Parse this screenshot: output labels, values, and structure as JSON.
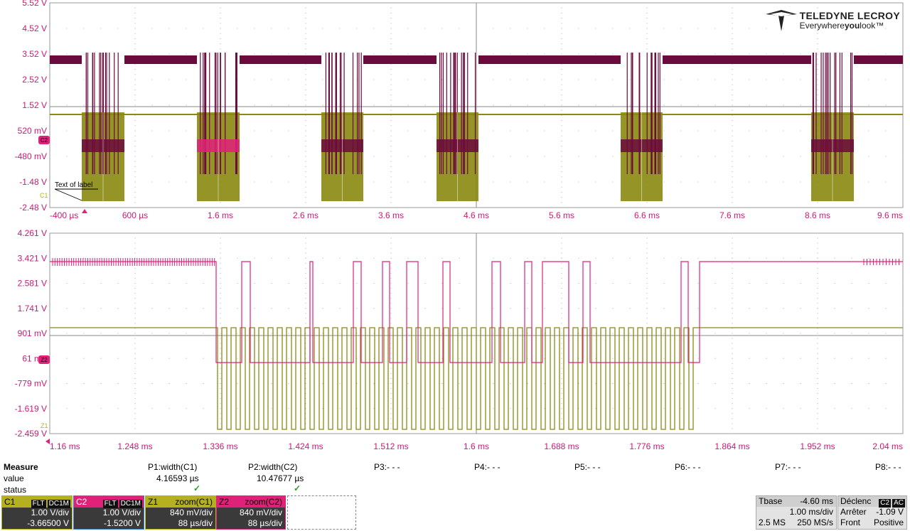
{
  "top_grid": {
    "y_labels": [
      "5.52 V",
      "4.52 V",
      "3.52 V",
      "2.52 V",
      "1.52 V",
      "520 mV",
      "-480 mV",
      "-1.48 V",
      "-2.48 V"
    ],
    "x_labels": [
      "-400 µs",
      "600 µs",
      "1.6 ms",
      "2.6 ms",
      "3.6 ms",
      "4.6 ms",
      "5.6 ms",
      "6.6 ms",
      "7.6 ms",
      "8.6 ms",
      "9.6 ms"
    ],
    "label_text": "Text of label",
    "c2_marker": "C2",
    "c1_marker": "C1"
  },
  "bottom_grid": {
    "y_labels": [
      "4.261 V",
      "3.421 V",
      "2.581 V",
      "1.741 V",
      "901 mV",
      "61 mV",
      "-779 mV",
      "-1.619 V",
      "-2.459 V"
    ],
    "x_labels": [
      "1.16 ms",
      "1.248 ms",
      "1.336 ms",
      "1.424 ms",
      "1.512 ms",
      "1.6 ms",
      "1.688 ms",
      "1.776 ms",
      "1.864 ms",
      "1.952 ms",
      "2.04 ms"
    ],
    "z1_marker": "Z1",
    "z2_marker": "Z2"
  },
  "logo": {
    "brand": "TELEDYNE LECROY",
    "tag_prefix": "Everywhere",
    "tag_bold": "you",
    "tag_suffix": "look"
  },
  "measure": {
    "title": "Measure",
    "row_value": "value",
    "row_status": "status",
    "columns": [
      {
        "name": "P1:width(C1)",
        "value": "4.16593 µs",
        "status": "ok"
      },
      {
        "name": "P2:width(C2)",
        "value": "10.47677 µs",
        "status": "ok"
      },
      {
        "name": "P3:- - -",
        "value": "",
        "status": ""
      },
      {
        "name": "P4:- - -",
        "value": "",
        "status": ""
      },
      {
        "name": "P5:- - -",
        "value": "",
        "status": ""
      },
      {
        "name": "P6:- - -",
        "value": "",
        "status": ""
      },
      {
        "name": "P7:- - -",
        "value": "",
        "status": ""
      },
      {
        "name": "P8:- - -",
        "value": "",
        "status": ""
      }
    ]
  },
  "channels": [
    {
      "id": "C1",
      "tag1": "FLT",
      "tag2": "DC1M",
      "line1": "1.00 V/div",
      "line2": "-3.66500 V",
      "color": "#b5b020"
    },
    {
      "id": "C2",
      "tag1": "FLT",
      "tag2": "DC1M",
      "line1": "1.00 V/div",
      "line2": "-1.5200 V",
      "color": "#e0217a"
    },
    {
      "id": "Z1",
      "title": "zoom(C1)",
      "line1": "840 mV/div",
      "line2": "88 µs/div",
      "color": "#b5b020"
    },
    {
      "id": "Z2",
      "title": "zoom(C2)",
      "line1": "840 mV/div",
      "line2": "88 µs/div",
      "color": "#e0217a"
    }
  ],
  "timebase": {
    "label": "Tbase",
    "offset": "-4.60 ms",
    "scale": "1.00 ms/div",
    "samples": "2.5 MS",
    "rate": "250 MS/s"
  },
  "trigger": {
    "label": "Déclenc",
    "tag1": "C2",
    "tag2": "AC",
    "mode": "Arrêter",
    "level": "-1.09 V",
    "edge_label": "Front",
    "edge": "Positive"
  },
  "colors": {
    "c1": "#8a8a10",
    "c2": "#6b0a3c",
    "c2_bright": "#e0217a",
    "label_color": "#cc1a74",
    "grid": "#bbbbbb"
  }
}
